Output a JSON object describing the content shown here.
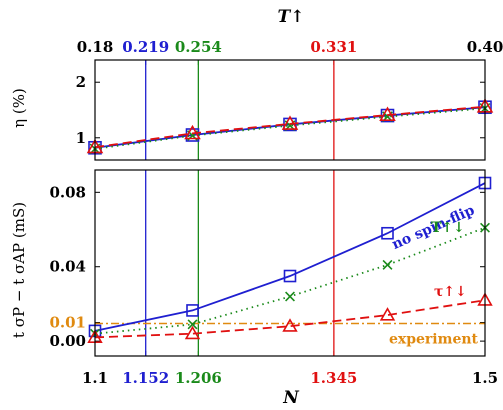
{
  "chart_data": [
    {
      "type": "line",
      "panel": "top",
      "ylabel": "η (%)",
      "xlabel_top": "T↑",
      "xlim": [
        1.1,
        1.5
      ],
      "ylim": [
        0.6,
        2.4
      ],
      "y_ticks": [
        1,
        2
      ],
      "top_ticks": [
        {
          "x": 1.1,
          "label": "0.18",
          "color": "#000000"
        },
        {
          "x": 1.152,
          "label": "0.219",
          "color": "#1f1fd0"
        },
        {
          "x": 1.206,
          "label": "0.254",
          "color": "#1a8a1a"
        },
        {
          "x": 1.345,
          "label": "0.331",
          "color": "#e01010"
        },
        {
          "x": 1.5,
          "label": "0.40",
          "color": "#000000"
        }
      ],
      "series": [
        {
          "key": "solid",
          "color": "#1f1fd0",
          "style": "solid",
          "marker": "square",
          "x": [
            1.1,
            1.2,
            1.3,
            1.4,
            1.5
          ],
          "y": [
            0.82,
            1.05,
            1.24,
            1.4,
            1.55
          ]
        },
        {
          "key": "dotted",
          "color": "#1a8a1a",
          "style": "dotted",
          "marker": "x",
          "x": [
            1.1,
            1.2,
            1.3,
            1.4,
            1.5
          ],
          "y": [
            0.8,
            1.04,
            1.22,
            1.38,
            1.53
          ]
        },
        {
          "key": "dashed",
          "color": "#e01010",
          "style": "dashed",
          "marker": "triangle",
          "x": [
            1.1,
            1.2,
            1.3,
            1.4,
            1.5
          ],
          "y": [
            0.83,
            1.08,
            1.25,
            1.41,
            1.56
          ]
        }
      ]
    },
    {
      "type": "line",
      "panel": "bottom",
      "ylabel": "t σP − t σAP (mS)",
      "xlabel": "N",
      "xlim": [
        1.1,
        1.5
      ],
      "ylim": [
        -0.008,
        0.092
      ],
      "y_ticks": [
        {
          "v": 0.0,
          "label": "0.00",
          "color": "#000000"
        },
        {
          "v": 0.01,
          "label": "0.01",
          "color": "#e08a10"
        },
        {
          "v": 0.04,
          "label": "0.04",
          "color": "#000000"
        },
        {
          "v": 0.08,
          "label": "0.08",
          "color": "#000000"
        }
      ],
      "x_ticks": [
        {
          "x": 1.1,
          "label": "1.1",
          "color": "#000000"
        },
        {
          "x": 1.152,
          "label": "1.152",
          "color": "#1f1fd0"
        },
        {
          "x": 1.206,
          "label": "1.206",
          "color": "#1a8a1a"
        },
        {
          "x": 1.345,
          "label": "1.345",
          "color": "#e01010"
        },
        {
          "x": 1.5,
          "label": "1.5",
          "color": "#000000"
        }
      ],
      "experiment": {
        "y": 0.0095,
        "label": "experiment",
        "color": "#e08a10"
      },
      "series": [
        {
          "name": "no spin-flip",
          "color": "#1f1fd0",
          "style": "solid",
          "marker": "square",
          "x": [
            1.1,
            1.2,
            1.3,
            1.4,
            1.5
          ],
          "y": [
            0.0055,
            0.0165,
            0.035,
            0.058,
            0.085
          ]
        },
        {
          "name": "T↑↓",
          "color": "#1a8a1a",
          "style": "dotted",
          "marker": "x",
          "x": [
            1.1,
            1.2,
            1.3,
            1.4,
            1.5
          ],
          "y": [
            0.004,
            0.009,
            0.024,
            0.041,
            0.061
          ]
        },
        {
          "name": "τ↑↓",
          "color": "#e01010",
          "style": "dashed",
          "marker": "triangle",
          "x": [
            1.1,
            1.2,
            1.3,
            1.4,
            1.5
          ],
          "y": [
            0.002,
            0.004,
            0.008,
            0.014,
            0.022
          ]
        }
      ]
    }
  ],
  "vlines": [
    {
      "x": 1.152,
      "color": "#1f1fd0"
    },
    {
      "x": 1.206,
      "color": "#1a8a1a"
    },
    {
      "x": 1.345,
      "color": "#e01010"
    }
  ]
}
